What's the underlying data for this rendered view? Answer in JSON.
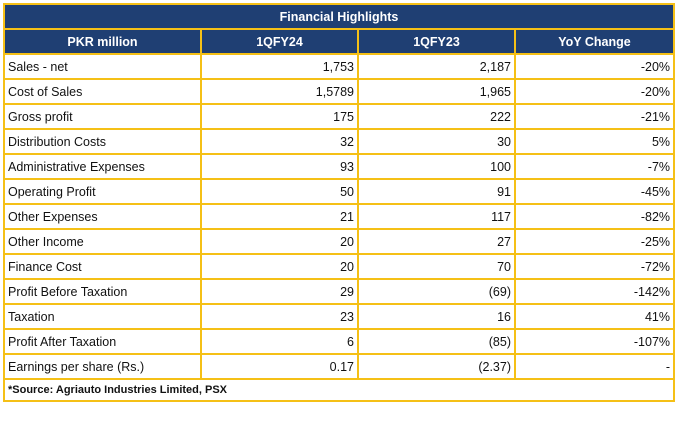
{
  "title": "Financial Highlights",
  "headers": [
    "PKR million",
    "1QFY24",
    "1QFY23",
    "YoY Change"
  ],
  "rows": [
    {
      "label": "Sales - net",
      "fy24": "1,753",
      "fy23": "2,187",
      "yoy": "-20%"
    },
    {
      "label": "Cost of Sales",
      "fy24": "1,5789",
      "fy23": "1,965",
      "yoy": "-20%"
    },
    {
      "label": "Gross profit",
      "fy24": "175",
      "fy23": "222",
      "yoy": "-21%"
    },
    {
      "label": "Distribution Costs",
      "fy24": "32",
      "fy23": "30",
      "yoy": "5%"
    },
    {
      "label": "Administrative Expenses",
      "fy24": "93",
      "fy23": "100",
      "yoy": "-7%"
    },
    {
      "label": "Operating Profit",
      "fy24": "50",
      "fy23": "91",
      "yoy": "-45%"
    },
    {
      "label": "Other Expenses",
      "fy24": "21",
      "fy23": "117",
      "yoy": "-82%"
    },
    {
      "label": "Other Income",
      "fy24": "20",
      "fy23": "27",
      "yoy": "-25%"
    },
    {
      "label": "Finance Cost",
      "fy24": "20",
      "fy23": "70",
      "yoy": "-72%"
    },
    {
      "label": "Profit Before Taxation",
      "fy24": "29",
      "fy23": "(69)",
      "yoy": "-142%"
    },
    {
      "label": "Taxation",
      "fy24": "23",
      "fy23": "16",
      "yoy": "41%"
    },
    {
      "label": "Profit After Taxation",
      "fy24": "6",
      "fy23": "(85)",
      "yoy": "-107%"
    },
    {
      "label": "Earnings per share (Rs.)",
      "fy24": "0.17",
      "fy23": "(2.37)",
      "yoy": "-"
    }
  ],
  "source": "*Source: Agriauto Industries Limited, PSX",
  "colors": {
    "header_bg": "#1F3F73",
    "border": "#F5C016",
    "header_text": "#FFFFFF"
  }
}
